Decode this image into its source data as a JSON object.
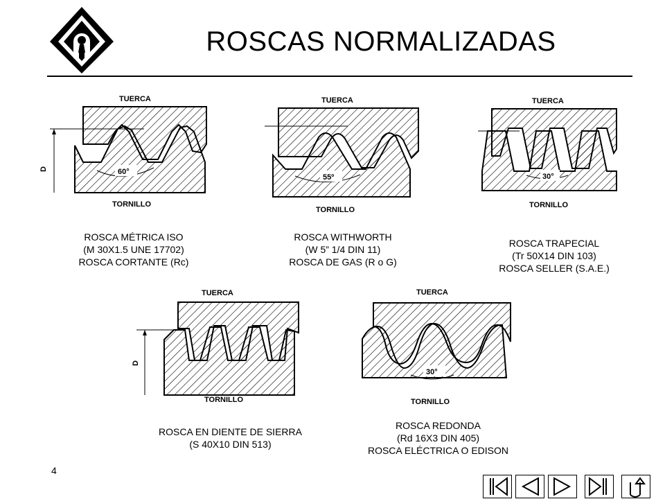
{
  "header": {
    "title": "ROSCAS NORMALIZADAS"
  },
  "labels": {
    "nut": "TUERCA",
    "screw": "TORNILLO",
    "diameter": "D"
  },
  "threads": [
    {
      "id": "metric",
      "angle": "60°",
      "lines": [
        "ROSCA MÉTRICA ISO",
        "(M 30X1.5 UNE 17702)",
        "ROSCA CORTANTE (Rc)"
      ]
    },
    {
      "id": "whitworth",
      "angle": "55º",
      "lines": [
        "ROSCA WITHWORTH",
        "(W 5” 1/4 DIN 11)",
        "ROSCA DE GAS (R o G)"
      ]
    },
    {
      "id": "trapezoidal",
      "angle": "30°",
      "lines": [
        "ROSCA TRAPECIAL",
        "(Tr 50X14 DIN 103)",
        "ROSCA SELLER (S.A.E.)"
      ]
    },
    {
      "id": "sawtooth",
      "angle": "",
      "lines": [
        "ROSCA EN DIENTE DE SIERRA",
        "(S 40X10 DIN 513)"
      ]
    },
    {
      "id": "round",
      "angle": "30°",
      "lines": [
        "ROSCA REDONDA",
        "(Rd 16X3 DIN 405)",
        "ROSCA ELÉCTRICA O EDISON"
      ]
    }
  ],
  "footer": {
    "page_number": "4"
  },
  "nav": {
    "icons": [
      "first-slide-icon",
      "previous-slide-icon",
      "next-slide-icon",
      "last-slide-icon",
      "return-icon"
    ]
  }
}
